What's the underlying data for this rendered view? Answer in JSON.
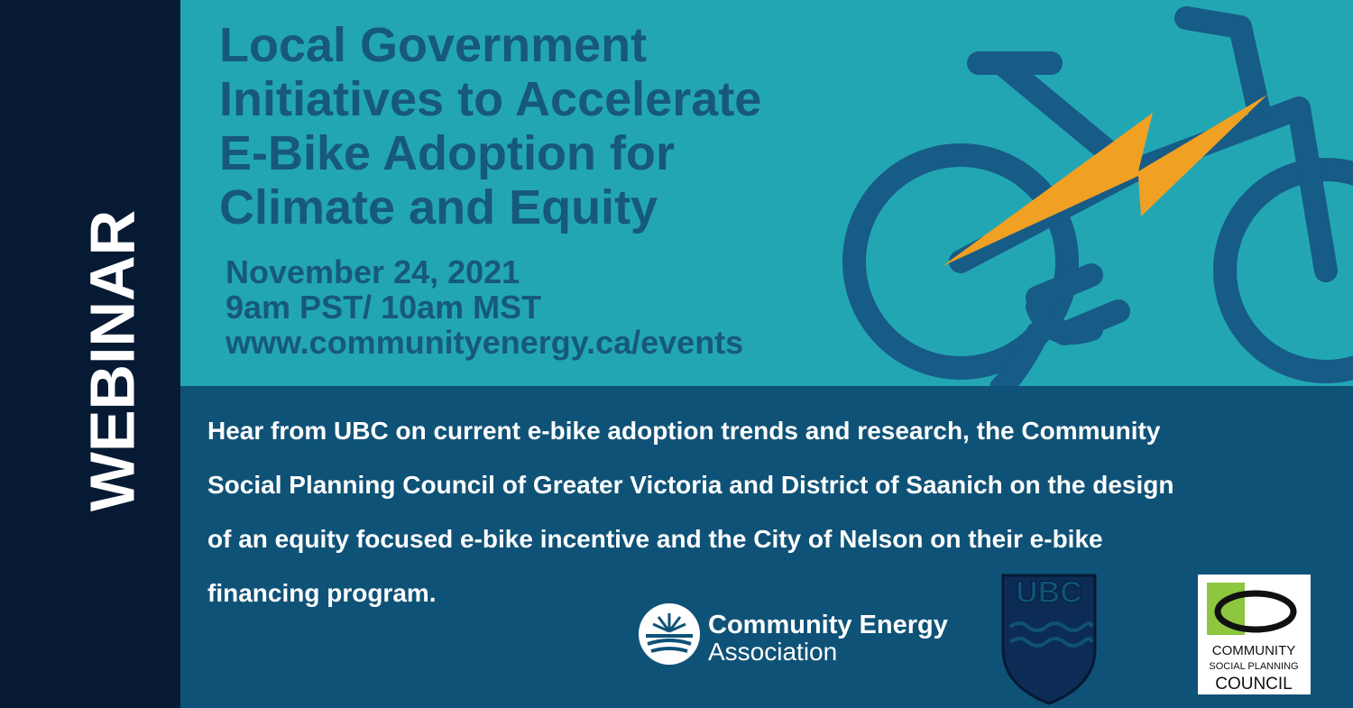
{
  "sidebar_label": "WEBINAR",
  "title_lines": [
    "Local Government",
    "Initiatives to Accelerate",
    "E-Bike Adoption for",
    "Climate and Equity"
  ],
  "date": "November 24, 2021",
  "time": "9am PST/ 10am MST",
  "url": "www.communityenergy.ca/events",
  "description_lines": [
    "Hear from UBC on current e-bike adoption trends and research, the Community",
    "Social Planning Council of Greater Victoria and District of Saanich on the design",
    "of an equity focused e-bike incentive and the City of Nelson on their e-bike",
    "financing program."
  ],
  "logos": {
    "cea": [
      "Community Energy",
      "Association"
    ],
    "ubc": "UBC",
    "cspc": [
      "COMMUNITY",
      "SOCIAL PLANNING",
      "COUNCIL"
    ]
  }
}
